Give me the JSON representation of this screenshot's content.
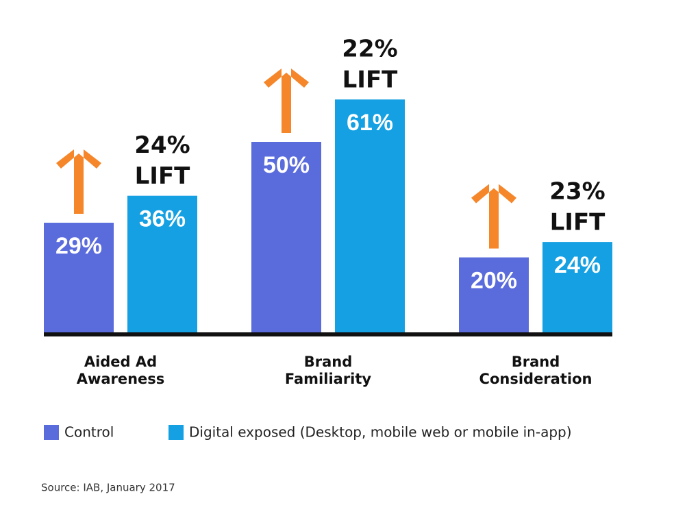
{
  "chart_data": {
    "type": "bar",
    "categories": [
      "Aided Ad Awareness",
      "Brand Familiarity",
      "Brand Consideration"
    ],
    "series": [
      {
        "name": "Control",
        "color": "#5a6bdc",
        "values": [
          29,
          50,
          20
        ],
        "value_labels": [
          "29%",
          "50%",
          "20%"
        ]
      },
      {
        "name": "Digital exposed (Desktop, mobile web or mobile in-app)",
        "color": "#14a0e2",
        "values": [
          36,
          61,
          24
        ],
        "value_labels": [
          "36%",
          "61%",
          "24%"
        ]
      }
    ],
    "annotations": [
      [
        "24%",
        "LIFT"
      ],
      [
        "22%",
        "LIFT"
      ],
      [
        "23%",
        "LIFT"
      ]
    ],
    "arrow_color": "#f5862a",
    "source": "Source: IAB, January 2017"
  }
}
